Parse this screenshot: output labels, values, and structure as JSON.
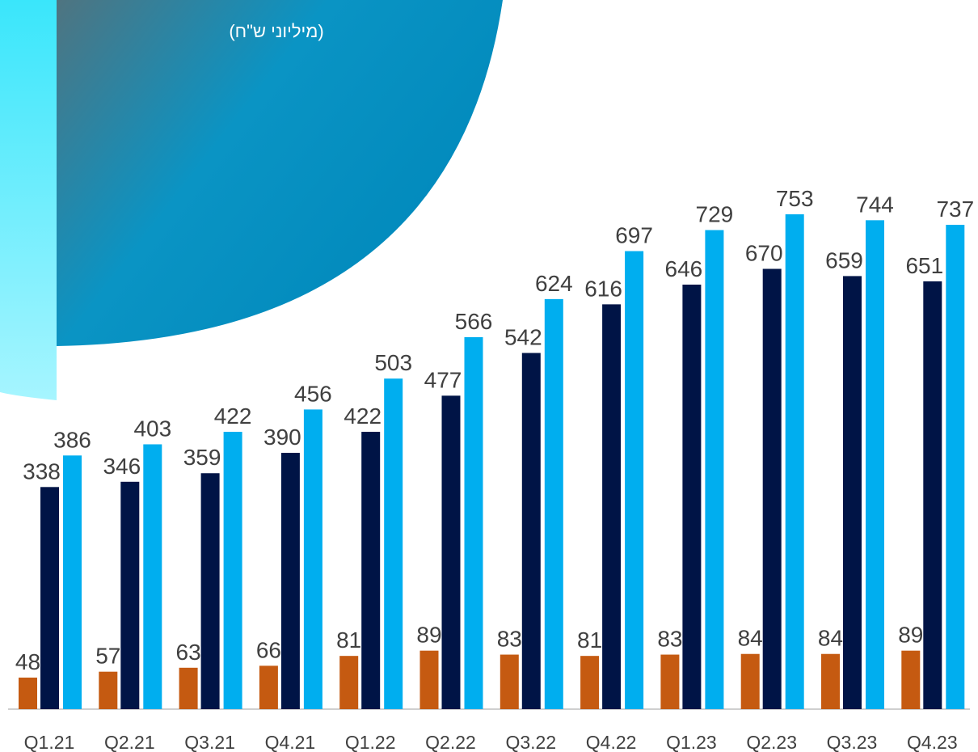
{
  "chart_data": {
    "type": "bar",
    "subtitle": "(מיליוני ש\"ח)",
    "categories": [
      "Q1.21",
      "Q2.21",
      "Q3.21",
      "Q4.21",
      "Q1.22",
      "Q2.22",
      "Q3.22",
      "Q4.22",
      "Q1.23",
      "Q2.23",
      "Q3.23",
      "Q4.23"
    ],
    "series": [
      {
        "color": "#c55a11",
        "values": [
          48,
          57,
          63,
          66,
          81,
          89,
          83,
          81,
          83,
          84,
          84,
          89
        ]
      },
      {
        "color": "#001446",
        "values": [
          338,
          346,
          359,
          390,
          422,
          477,
          542,
          616,
          646,
          670,
          659,
          651
        ]
      },
      {
        "color": "#00aeef",
        "values": [
          386,
          403,
          422,
          456,
          503,
          566,
          624,
          697,
          729,
          753,
          744,
          737
        ]
      }
    ]
  }
}
